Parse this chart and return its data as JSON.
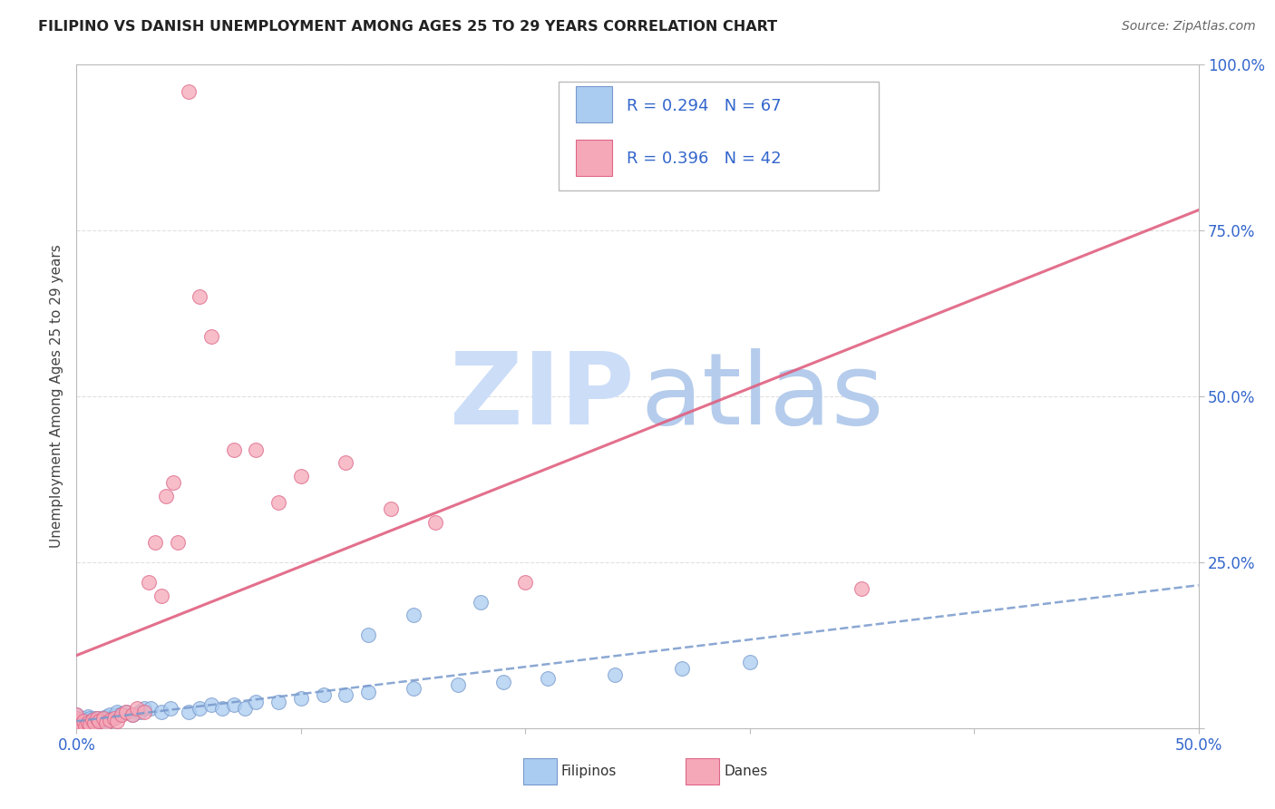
{
  "title": "FILIPINO VS DANISH UNEMPLOYMENT AMONG AGES 25 TO 29 YEARS CORRELATION CHART",
  "source": "Source: ZipAtlas.com",
  "ylabel": "Unemployment Among Ages 25 to 29 years",
  "xlim": [
    0.0,
    0.5
  ],
  "ylim": [
    0.0,
    1.0
  ],
  "xticks": [
    0.0,
    0.1,
    0.2,
    0.3,
    0.4,
    0.5
  ],
  "yticks": [
    0.0,
    0.25,
    0.5,
    0.75,
    1.0
  ],
  "xtick_labels": [
    "0.0%",
    "",
    "",
    "",
    "",
    "50.0%"
  ],
  "ytick_labels": [
    "",
    "25.0%",
    "50.0%",
    "75.0%",
    "100.0%"
  ],
  "filipino_color": "#aaccf0",
  "danish_color": "#f5a8b8",
  "filipino_edge": "#7799cc",
  "danish_edge": "#dd6688",
  "watermark_zip_color": "#ccddf5",
  "watermark_atlas_color": "#b0c8e8",
  "background_color": "#ffffff",
  "grid_color": "#dddddd",
  "regression_filipino_color": "#7799cc",
  "regression_danish_color": "#e06080",
  "legend_text_color": "#3366cc",
  "legend_box_edge": "#bbbbbb",
  "tick_color": "#3366cc",
  "filipinos_x": [
    0.0,
    0.0,
    0.0,
    0.0,
    0.0,
    0.0,
    0.0,
    0.0,
    0.002,
    0.002,
    0.002,
    0.003,
    0.003,
    0.003,
    0.004,
    0.004,
    0.005,
    0.005,
    0.005,
    0.006,
    0.006,
    0.007,
    0.007,
    0.008,
    0.008,
    0.009,
    0.01,
    0.01,
    0.011,
    0.012,
    0.013,
    0.013,
    0.014,
    0.015,
    0.016,
    0.018,
    0.018,
    0.02,
    0.022,
    0.025,
    0.028,
    0.03,
    0.033,
    0.038,
    0.042,
    0.05,
    0.055,
    0.06,
    0.065,
    0.07,
    0.075,
    0.08,
    0.09,
    0.1,
    0.11,
    0.12,
    0.13,
    0.15,
    0.17,
    0.19,
    0.21,
    0.24,
    0.27,
    0.3,
    0.15,
    0.18,
    0.13
  ],
  "filipinos_y": [
    0.0,
    0.003,
    0.005,
    0.008,
    0.01,
    0.012,
    0.015,
    0.02,
    0.0,
    0.005,
    0.01,
    0.005,
    0.01,
    0.015,
    0.003,
    0.012,
    0.005,
    0.01,
    0.018,
    0.008,
    0.015,
    0.003,
    0.012,
    0.008,
    0.015,
    0.01,
    0.008,
    0.015,
    0.012,
    0.015,
    0.008,
    0.018,
    0.015,
    0.02,
    0.015,
    0.02,
    0.025,
    0.022,
    0.025,
    0.02,
    0.025,
    0.03,
    0.03,
    0.025,
    0.03,
    0.025,
    0.03,
    0.035,
    0.03,
    0.035,
    0.03,
    0.04,
    0.04,
    0.045,
    0.05,
    0.05,
    0.055,
    0.06,
    0.065,
    0.07,
    0.075,
    0.08,
    0.09,
    0.1,
    0.17,
    0.19,
    0.14
  ],
  "danes_x": [
    0.0,
    0.0,
    0.0,
    0.0,
    0.0,
    0.002,
    0.003,
    0.004,
    0.005,
    0.006,
    0.007,
    0.008,
    0.009,
    0.01,
    0.012,
    0.013,
    0.015,
    0.017,
    0.018,
    0.02,
    0.022,
    0.025,
    0.027,
    0.03,
    0.032,
    0.035,
    0.038,
    0.04,
    0.043,
    0.045,
    0.05,
    0.055,
    0.06,
    0.07,
    0.08,
    0.09,
    0.1,
    0.12,
    0.14,
    0.16,
    0.2,
    0.35
  ],
  "danes_y": [
    0.0,
    0.005,
    0.01,
    0.015,
    0.02,
    0.005,
    0.01,
    0.003,
    0.008,
    0.005,
    0.012,
    0.008,
    0.015,
    0.01,
    0.015,
    0.008,
    0.012,
    0.015,
    0.01,
    0.02,
    0.025,
    0.02,
    0.03,
    0.025,
    0.22,
    0.28,
    0.2,
    0.35,
    0.37,
    0.28,
    0.96,
    0.65,
    0.59,
    0.42,
    0.42,
    0.34,
    0.38,
    0.4,
    0.33,
    0.31,
    0.22,
    0.21
  ]
}
